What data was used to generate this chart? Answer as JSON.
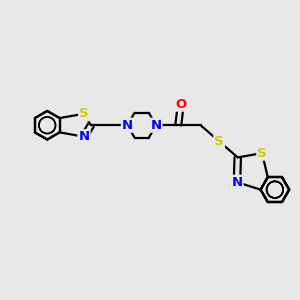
{
  "background_color": "#e8e8e8",
  "bond_color": "#000000",
  "nitrogen_color": "#0000ff",
  "sulfur_color": "#cccc00",
  "oxygen_color": "#ff0000",
  "line_width": 1.6,
  "figsize": [
    3.0,
    3.0
  ],
  "dpi": 100,
  "bl": 1.0,
  "xlim": [
    0,
    12
  ],
  "ylim": [
    0,
    12
  ]
}
